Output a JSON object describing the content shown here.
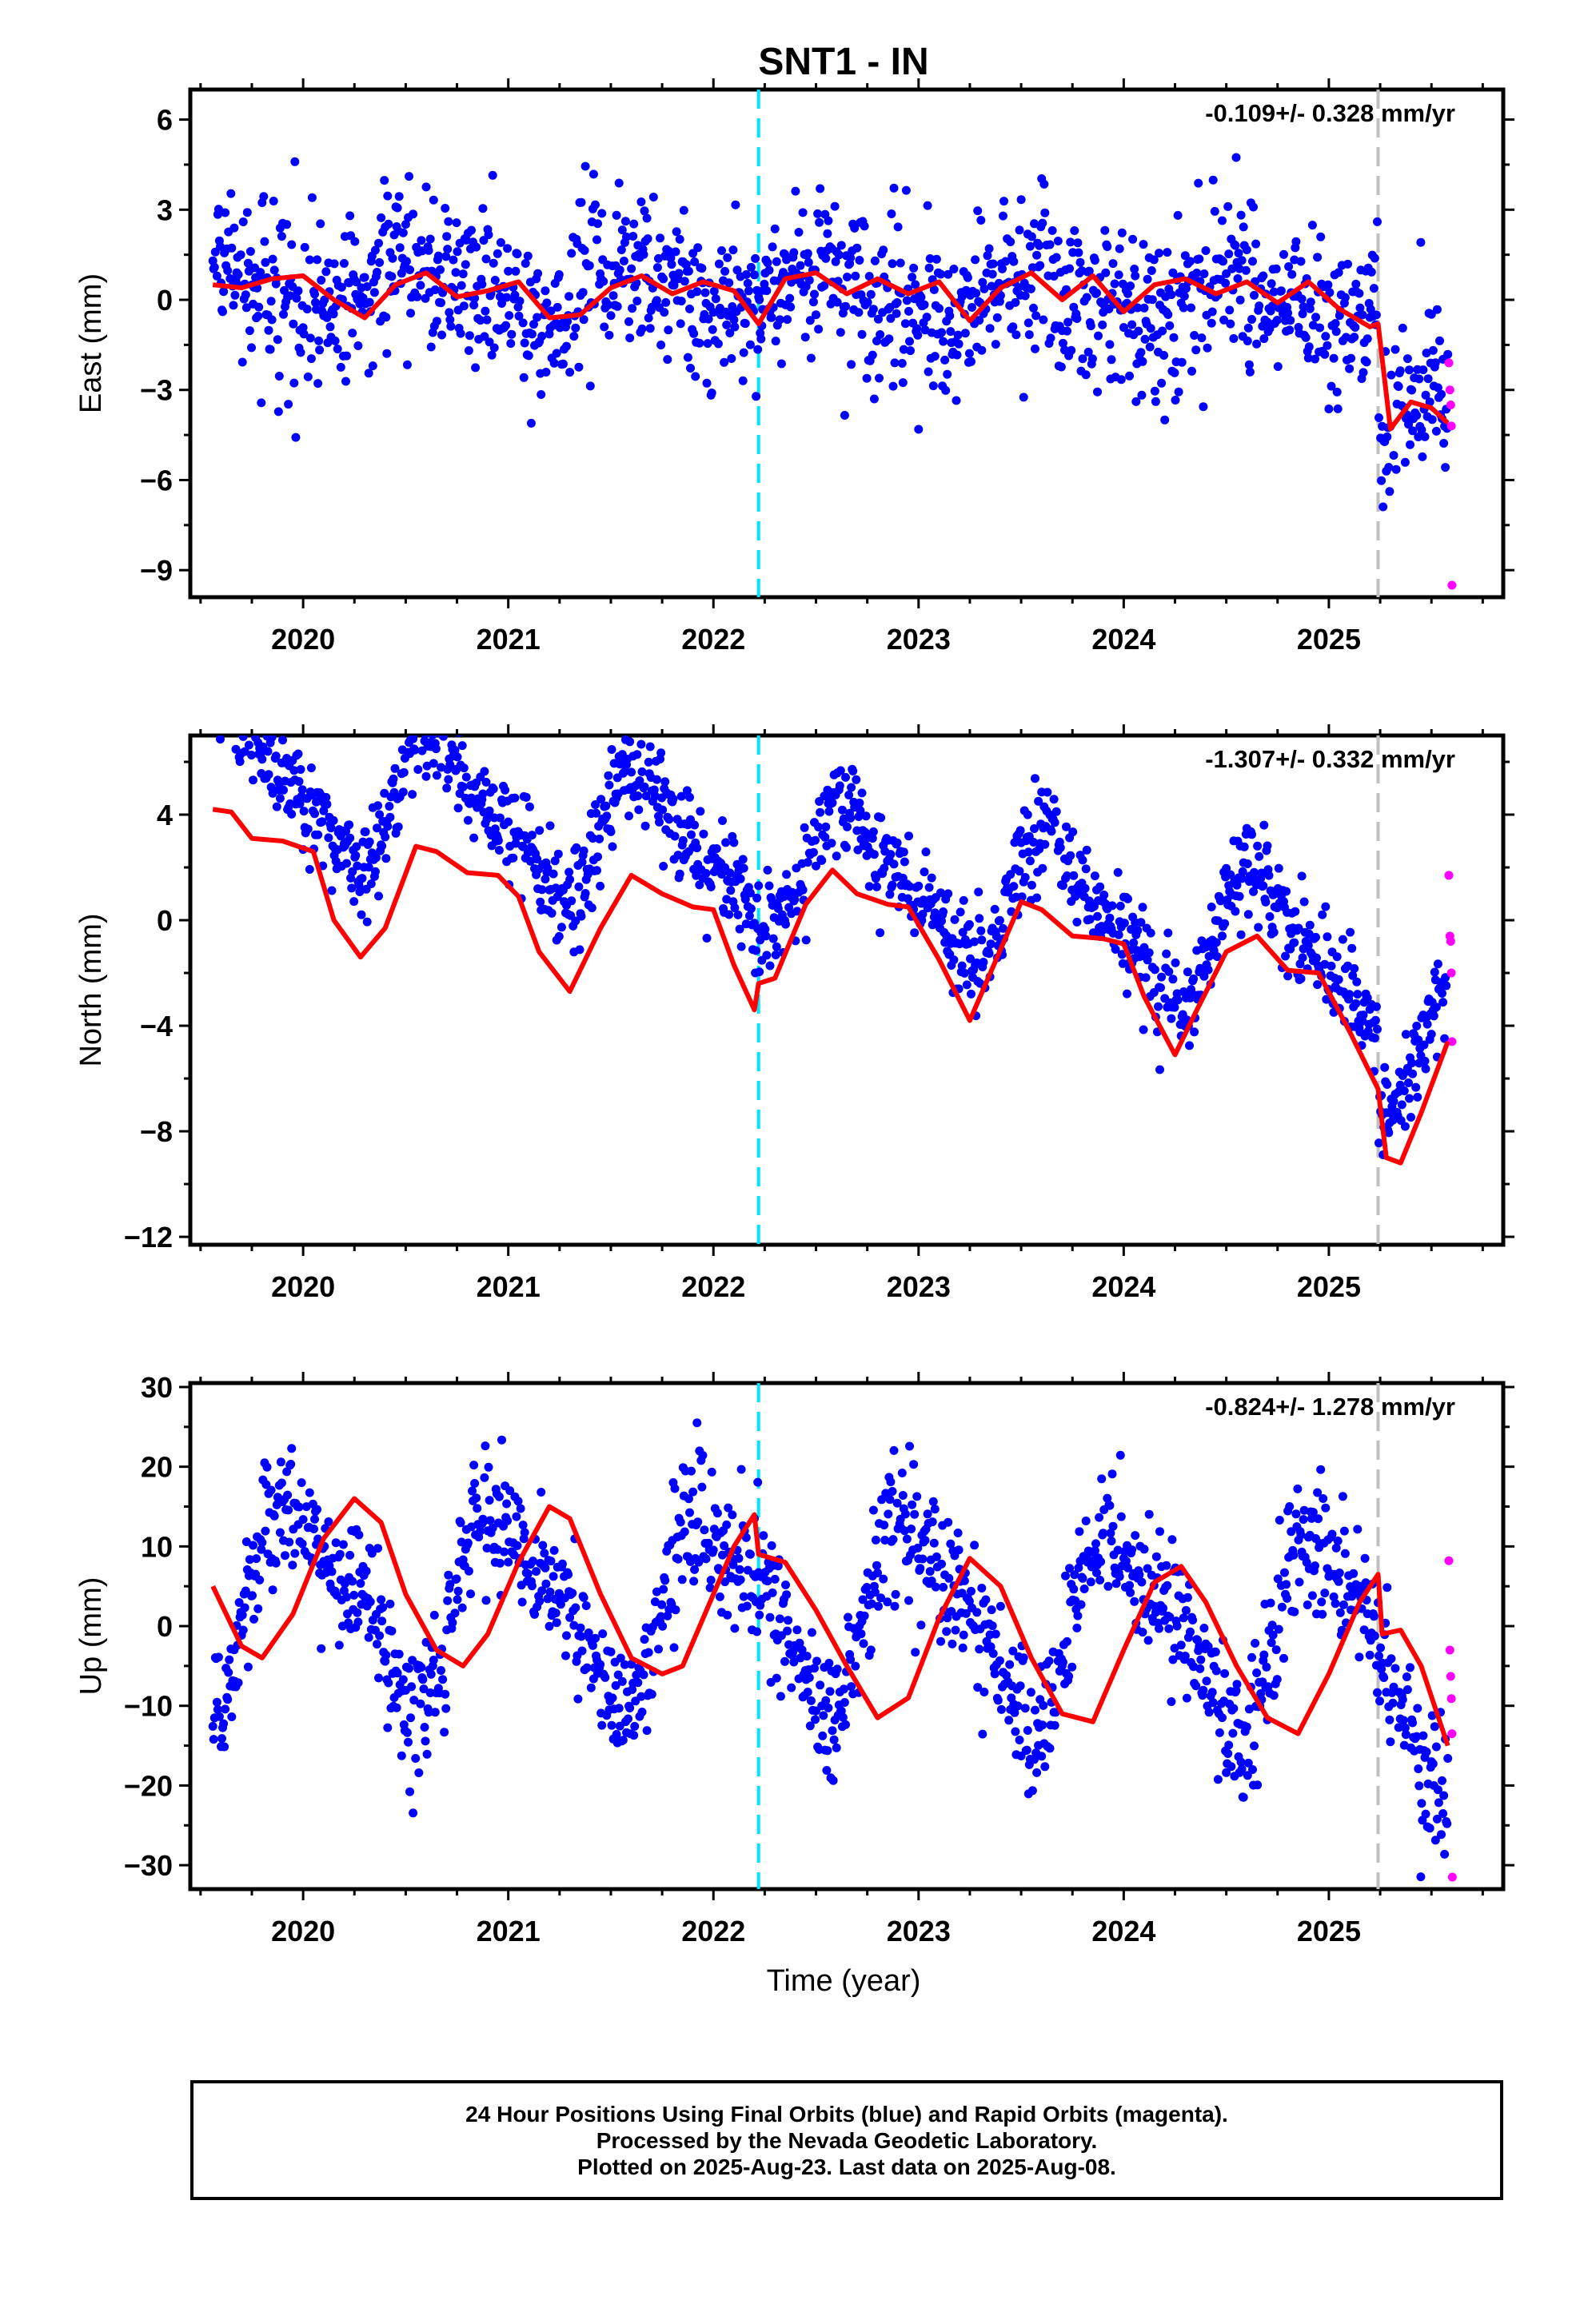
{
  "title": "SNT1 - IN",
  "xlabel": "Time (year)",
  "footer": {
    "line1": "24 Hour Positions Using Final Orbits (blue) and Rapid Orbits (magenta).",
    "line2": "Processed by the Nevada Geodetic Laboratory.",
    "line3": "Plotted on 2025-Aug-23. Last data on 2025-Aug-08."
  },
  "colors": {
    "final_orbits": "#0000ff",
    "rapid_orbits": "#ff00ff",
    "model": "#ff0000",
    "event_cyan": "#00e5ff",
    "event_gray": "#c0c0c0"
  },
  "chart_data": [
    {
      "type": "scatter",
      "title": "SNT1 - IN",
      "ylabel": "East (mm)",
      "xlabel": "",
      "rate_text": "-0.109+/- 0.328 mm/yr",
      "xlim": [
        2019.45,
        2025.85
      ],
      "ylim": [
        -9.9,
        7.0
      ],
      "x_ticks": [
        2020,
        2021,
        2022,
        2023,
        2024,
        2025
      ],
      "y_ticks": [
        6,
        3,
        0,
        -3,
        -6,
        -9
      ],
      "grid": false,
      "event_lines": [
        {
          "x": 2022.22,
          "color": "cyan",
          "style": "dashed"
        },
        {
          "x": 2025.24,
          "color": "gray",
          "style": "dashed"
        }
      ],
      "series": [
        {
          "name": "Final Orbits",
          "color": "blue",
          "generator": {
            "start": 2019.56,
            "end": 2025.58,
            "step": 0.004,
            "season_amp": 0.7,
            "season_phase": 1.2,
            "noise": 1.35,
            "trend": -0.109,
            "offset": 0.2,
            "step_at": 2025.24,
            "step_size": -3.6
          }
        },
        {
          "name": "Rapid Orbits",
          "color": "magenta",
          "x": [
            2025.585,
            2025.59,
            2025.594,
            2025.597,
            2025.6
          ],
          "y": [
            -2.1,
            -3.0,
            -3.5,
            -4.2,
            -9.5
          ]
        },
        {
          "name": "Model",
          "color": "red",
          "type": "line",
          "x": [
            2019.56,
            2019.7,
            2019.85,
            2020.0,
            2020.15,
            2020.3,
            2020.45,
            2020.6,
            2020.75,
            2020.9,
            2021.05,
            2021.2,
            2021.35,
            2021.5,
            2021.65,
            2021.8,
            2021.95,
            2022.1,
            2022.22,
            2022.35,
            2022.5,
            2022.65,
            2022.8,
            2022.95,
            2023.1,
            2023.25,
            2023.4,
            2023.55,
            2023.7,
            2023.85,
            2024.0,
            2024.15,
            2024.3,
            2024.45,
            2024.6,
            2024.75,
            2024.9,
            2025.05,
            2025.2,
            2025.24,
            2025.3,
            2025.4,
            2025.5,
            2025.58
          ],
          "y": [
            0.5,
            0.4,
            0.7,
            0.8,
            0.0,
            -0.6,
            0.5,
            0.9,
            0.1,
            0.3,
            0.6,
            -0.6,
            -0.5,
            0.4,
            0.8,
            0.2,
            0.6,
            0.3,
            -0.8,
            0.7,
            0.9,
            0.2,
            0.7,
            0.2,
            0.6,
            -0.7,
            0.4,
            0.9,
            0.0,
            0.8,
            -0.4,
            0.5,
            0.7,
            0.2,
            0.6,
            -0.1,
            0.6,
            -0.3,
            -0.9,
            -0.8,
            -4.3,
            -3.4,
            -3.6,
            -4.1
          ]
        }
      ]
    },
    {
      "type": "scatter",
      "ylabel": "North (mm)",
      "xlabel": "",
      "rate_text": "-1.307+/- 0.332 mm/yr",
      "xlim": [
        2019.45,
        2025.85
      ],
      "ylim": [
        -12.3,
        7.0
      ],
      "x_ticks": [
        2020,
        2021,
        2022,
        2023,
        2024,
        2025
      ],
      "y_ticks": [
        4,
        0,
        -4,
        -8,
        -12
      ],
      "grid": false,
      "event_lines": [
        {
          "x": 2022.22,
          "color": "cyan",
          "style": "dashed"
        },
        {
          "x": 2025.24,
          "color": "gray",
          "style": "dashed"
        }
      ],
      "series": [
        {
          "name": "Final Orbits",
          "color": "blue",
          "generator": {
            "start": 2019.56,
            "end": 2025.58,
            "step": 0.004,
            "season_amp": 2.3,
            "season_phase": 0.4,
            "noise": 0.95,
            "trend": -1.307,
            "offset": 1.9,
            "step_at": 2025.24,
            "step_size": -3.0
          }
        },
        {
          "name": "Rapid Orbits",
          "color": "magenta",
          "x": [
            2025.585,
            2025.59,
            2025.594,
            2025.597,
            2025.6
          ],
          "y": [
            1.7,
            -0.6,
            -0.8,
            -2.0,
            -4.6
          ]
        },
        {
          "name": "Model",
          "color": "red",
          "type": "line",
          "x": [
            2019.56,
            2019.65,
            2019.75,
            2019.9,
            2020.05,
            2020.15,
            2020.28,
            2020.4,
            2020.55,
            2020.65,
            2020.8,
            2020.95,
            2021.05,
            2021.15,
            2021.3,
            2021.45,
            2021.6,
            2021.75,
            2021.9,
            2022.0,
            2022.1,
            2022.2,
            2022.22,
            2022.3,
            2022.45,
            2022.58,
            2022.7,
            2022.85,
            2022.95,
            2023.1,
            2023.25,
            2023.35,
            2023.5,
            2023.6,
            2023.75,
            2023.9,
            2024.0,
            2024.1,
            2024.25,
            2024.35,
            2024.5,
            2024.65,
            2024.8,
            2024.95,
            2025.1,
            2025.24,
            2025.28,
            2025.35,
            2025.45,
            2025.58
          ],
          "y": [
            4.2,
            4.1,
            3.1,
            3.0,
            2.6,
            0.0,
            -1.4,
            -0.3,
            2.8,
            2.6,
            1.8,
            1.7,
            0.9,
            -1.2,
            -2.7,
            -0.3,
            1.7,
            1.0,
            0.5,
            0.4,
            -1.7,
            -3.4,
            -2.4,
            -2.2,
            0.6,
            1.9,
            1.0,
            0.6,
            0.5,
            -1.5,
            -3.8,
            -2.0,
            0.7,
            0.4,
            -0.6,
            -0.7,
            -0.9,
            -2.9,
            -5.1,
            -3.5,
            -1.2,
            -0.6,
            -1.9,
            -2.0,
            -4.2,
            -6.4,
            -9.0,
            -9.2,
            -7.3,
            -4.6
          ]
        }
      ]
    },
    {
      "type": "scatter",
      "ylabel": "Up (mm)",
      "xlabel": "Time (year)",
      "rate_text": "-0.824+/- 1.278 mm/yr",
      "xlim": [
        2019.45,
        2025.85
      ],
      "ylim": [
        -33.0,
        30.5
      ],
      "x_ticks": [
        2020,
        2021,
        2022,
        2023,
        2024,
        2025
      ],
      "y_ticks": [
        30,
        20,
        10,
        0,
        -10,
        -20,
        -30
      ],
      "grid": false,
      "event_lines": [
        {
          "x": 2022.22,
          "color": "cyan",
          "style": "dashed"
        },
        {
          "x": 2025.24,
          "color": "gray",
          "style": "dashed"
        }
      ],
      "series": [
        {
          "name": "Final Orbits",
          "color": "blue",
          "generator": {
            "start": 2019.56,
            "end": 2025.58,
            "step": 0.004,
            "season_amp": 11.0,
            "season_phase": -1.6,
            "noise": 4.2,
            "trend": -0.824,
            "offset": 1.5,
            "step_at": 2025.24,
            "step_size": -6.0
          }
        },
        {
          "name": "Rapid Orbits",
          "color": "magenta",
          "x": [
            2025.585,
            2025.59,
            2025.594,
            2025.597,
            2025.6,
            2025.602
          ],
          "y": [
            8.2,
            -3.0,
            -6.3,
            -9.1,
            -13.5,
            -31.5
          ]
        },
        {
          "name": "Model",
          "color": "red",
          "type": "line",
          "x": [
            2019.56,
            2019.7,
            2019.8,
            2019.95,
            2020.1,
            2020.25,
            2020.38,
            2020.5,
            2020.65,
            2020.78,
            2020.9,
            2021.05,
            2021.2,
            2021.3,
            2021.45,
            2021.6,
            2021.75,
            2021.85,
            2022.0,
            2022.1,
            2022.2,
            2022.22,
            2022.35,
            2022.5,
            2022.65,
            2022.8,
            2022.95,
            2023.1,
            2023.25,
            2023.4,
            2023.55,
            2023.7,
            2023.85,
            2024.0,
            2024.15,
            2024.28,
            2024.4,
            2024.55,
            2024.7,
            2024.85,
            2025.0,
            2025.15,
            2025.24,
            2025.26,
            2025.35,
            2025.45,
            2025.58
          ],
          "y": [
            5.0,
            -2.5,
            -4.0,
            1.5,
            11.0,
            16.0,
            13.0,
            4.0,
            -3.0,
            -5.0,
            -1.0,
            8.0,
            15.0,
            13.5,
            4.0,
            -4.0,
            -6.0,
            -5.0,
            4.0,
            10.0,
            14.0,
            9.0,
            8.0,
            2.0,
            -5.0,
            -11.5,
            -9.0,
            1.0,
            8.5,
            5.0,
            -4.0,
            -11.0,
            -12.0,
            -3.0,
            5.5,
            7.5,
            3.0,
            -5.0,
            -11.5,
            -13.5,
            -6.0,
            3.0,
            6.5,
            -1.0,
            -0.5,
            -5.0,
            -15.0
          ]
        }
      ]
    }
  ]
}
